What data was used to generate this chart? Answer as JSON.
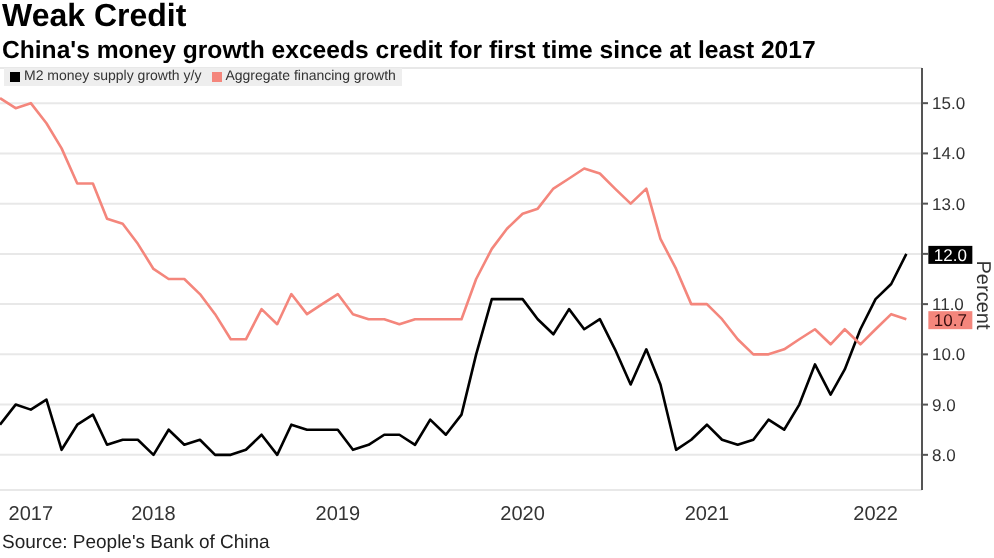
{
  "chart_data": {
    "type": "line",
    "title": "Weak Credit",
    "subtitle": "China's money growth exceeds credit for first time since at least 2017",
    "ylabel": "Percent",
    "x": [
      "2017-08",
      "2017-09",
      "2017-10",
      "2017-11",
      "2017-12",
      "2018-01",
      "2018-02",
      "2018-03",
      "2018-04",
      "2018-05",
      "2018-06",
      "2018-07",
      "2018-08",
      "2018-09",
      "2018-10",
      "2018-11",
      "2018-12",
      "2019-01",
      "2019-02",
      "2019-03",
      "2019-04",
      "2019-05",
      "2019-06",
      "2019-07",
      "2019-08",
      "2019-09",
      "2019-10",
      "2019-11",
      "2019-12",
      "2020-01",
      "2020-02",
      "2020-03",
      "2020-04",
      "2020-05",
      "2020-06",
      "2020-07",
      "2020-08",
      "2020-09",
      "2020-10",
      "2020-11",
      "2020-12",
      "2021-01",
      "2021-02",
      "2021-03",
      "2021-04",
      "2021-05",
      "2021-06",
      "2021-07",
      "2021-08",
      "2021-09",
      "2021-10",
      "2021-11",
      "2021-12",
      "2022-01",
      "2022-02",
      "2022-03",
      "2022-04",
      "2022-05",
      "2022-06",
      "2022-07"
    ],
    "series": [
      {
        "name": "M2 money supply growth y/y",
        "color": "#000000",
        "values": [
          8.6,
          9.0,
          8.9,
          9.1,
          8.1,
          8.6,
          8.8,
          8.2,
          8.3,
          8.3,
          8.0,
          8.5,
          8.2,
          8.3,
          8.0,
          8.0,
          8.1,
          8.4,
          8.0,
          8.6,
          8.5,
          8.5,
          8.5,
          8.1,
          8.2,
          8.4,
          8.4,
          8.2,
          8.7,
          8.4,
          8.8,
          10.0,
          11.1,
          11.1,
          11.1,
          10.7,
          10.4,
          10.9,
          10.5,
          10.7,
          10.1,
          9.4,
          10.1,
          9.4,
          8.1,
          8.3,
          8.6,
          8.3,
          8.2,
          8.3,
          8.7,
          8.5,
          9.0,
          9.8,
          9.2,
          9.7,
          10.5,
          11.1,
          11.4,
          12.0
        ],
        "value_labels": [
          null,
          null,
          null,
          null,
          null,
          null,
          null,
          null,
          null,
          null,
          null,
          null,
          null,
          null,
          null,
          null,
          null,
          null,
          null,
          null,
          null,
          null,
          null,
          null,
          null,
          null,
          null,
          null,
          null,
          null,
          null,
          null,
          null,
          null,
          null,
          null,
          null,
          null,
          null,
          null,
          null,
          null,
          null,
          null,
          null,
          null,
          null,
          null,
          null,
          null,
          null,
          null,
          null,
          null,
          null,
          null,
          null,
          null,
          null,
          "12.0"
        ]
      },
      {
        "name": "Aggregate financing growth",
        "color": "#f4867c",
        "values": [
          15.1,
          14.9,
          15.0,
          14.6,
          14.1,
          13.4,
          13.4,
          12.7,
          12.6,
          12.2,
          11.7,
          11.5,
          11.5,
          11.2,
          10.8,
          10.3,
          10.3,
          10.9,
          10.6,
          11.2,
          10.8,
          11.0,
          11.2,
          10.8,
          10.7,
          10.7,
          10.6,
          10.7,
          10.7,
          10.7,
          10.7,
          11.5,
          12.1,
          12.5,
          12.8,
          12.9,
          13.3,
          13.5,
          13.7,
          13.6,
          13.3,
          13.0,
          13.3,
          12.3,
          11.7,
          11.0,
          11.0,
          10.7,
          10.3,
          10.0,
          10.0,
          10.1,
          10.3,
          10.5,
          10.2,
          10.5,
          10.2,
          10.5,
          10.8,
          10.7
        ],
        "value_labels": [
          null,
          null,
          null,
          null,
          null,
          null,
          null,
          null,
          null,
          null,
          null,
          null,
          null,
          null,
          null,
          null,
          null,
          null,
          null,
          null,
          null,
          null,
          null,
          null,
          null,
          null,
          null,
          null,
          null,
          null,
          null,
          null,
          null,
          null,
          null,
          null,
          null,
          null,
          null,
          null,
          null,
          null,
          null,
          null,
          null,
          null,
          null,
          null,
          null,
          null,
          null,
          null,
          null,
          null,
          null,
          null,
          null,
          null,
          null,
          "10.7"
        ]
      }
    ],
    "xlim": [
      "2017-08",
      "2022-08"
    ],
    "xticks": [
      {
        "value": "2017-10",
        "label": "2017"
      },
      {
        "value": "2018-06",
        "label": "2018"
      },
      {
        "value": "2019-06",
        "label": "2019"
      },
      {
        "value": "2020-06",
        "label": "2020"
      },
      {
        "value": "2021-06",
        "label": "2021"
      },
      {
        "value": "2022-05",
        "label": "2022"
      }
    ],
    "ylim": [
      7.3,
      15.7
    ],
    "yticks": [
      {
        "value": 8,
        "label": "8.0"
      },
      {
        "value": 9,
        "label": "9.0"
      },
      {
        "value": 10,
        "label": "10.0"
      },
      {
        "value": 11,
        "label": "11.0"
      },
      {
        "value": 12,
        "label": null
      },
      {
        "value": 13,
        "label": "13.0"
      },
      {
        "value": 14,
        "label": "14.0"
      },
      {
        "value": 15,
        "label": "15.0"
      }
    ],
    "grid": "y",
    "legend": "top left",
    "annotations": [
      "Source: People's Bank of China"
    ]
  }
}
